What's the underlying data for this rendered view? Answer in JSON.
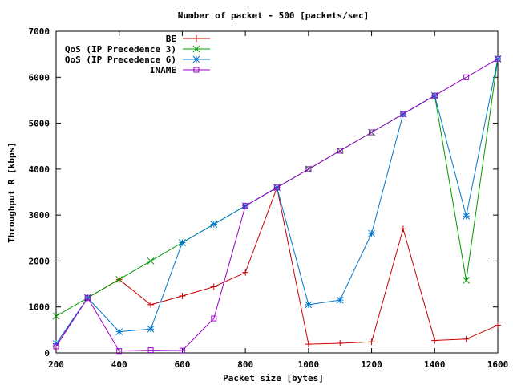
{
  "chart_data": {
    "type": "line",
    "title": "Number of packet - 500 [packets/sec]",
    "xlabel": "Packet size [bytes]",
    "ylabel": "Throughput R [kbps]",
    "xlim": [
      200,
      1600
    ],
    "ylim": [
      0,
      7000
    ],
    "xticks": [
      200,
      400,
      600,
      800,
      1000,
      1200,
      1400,
      1600
    ],
    "yticks": [
      0,
      1000,
      2000,
      3000,
      4000,
      5000,
      6000,
      7000
    ],
    "grid": false,
    "legend_position": "top-left",
    "x": [
      200,
      300,
      400,
      500,
      600,
      700,
      800,
      900,
      1000,
      1100,
      1200,
      1300,
      1400,
      1500,
      1600
    ],
    "series": [
      {
        "name": "BE",
        "color": "#cc0000",
        "marker": "plus",
        "values": [
          150,
          1200,
          1600,
          1050,
          1240,
          1440,
          1750,
          3600,
          190,
          210,
          240,
          2700,
          270,
          300,
          600
        ]
      },
      {
        "name": "QoS (IP Precedence 3)",
        "color": "#009900",
        "marker": "cross",
        "values": [
          800,
          1200,
          1600,
          2000,
          2400,
          2800,
          3200,
          3600,
          4000,
          4400,
          4800,
          5200,
          5600,
          1580,
          6400
        ]
      },
      {
        "name": "QoS (IP Precedence 6)",
        "color": "#0077cc",
        "marker": "star",
        "values": [
          200,
          1200,
          460,
          520,
          2400,
          2800,
          3200,
          3600,
          1050,
          1150,
          2600,
          5200,
          5600,
          2980,
          6400
        ]
      },
      {
        "name": "INAME",
        "color": "#9900cc",
        "marker": "square",
        "values": [
          140,
          1200,
          40,
          60,
          50,
          750,
          3200,
          3600,
          4000,
          4400,
          4800,
          5200,
          5600,
          6000,
          6400
        ]
      }
    ]
  }
}
